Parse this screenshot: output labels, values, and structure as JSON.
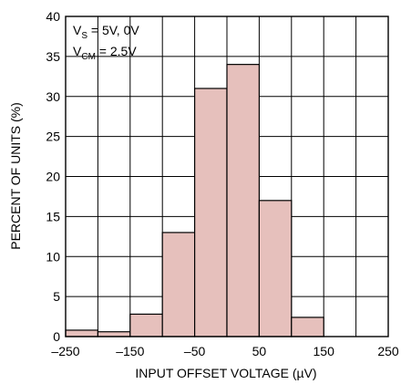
{
  "chart_data": {
    "type": "bar",
    "xlabel": "INPUT OFFSET VOLTAGE (µV)",
    "ylabel": "PERCENT OF UNITS (%)",
    "xlim": [
      -250,
      250
    ],
    "ylim": [
      0,
      40
    ],
    "x_ticks": [
      "–250",
      "–150",
      "–50",
      "50",
      "150",
      "250"
    ],
    "x_tick_values": [
      -250,
      -150,
      -50,
      50,
      150,
      250
    ],
    "y_ticks": [
      "0",
      "5",
      "10",
      "15",
      "20",
      "25",
      "30",
      "35",
      "40"
    ],
    "y_tick_values": [
      0,
      5,
      10,
      15,
      20,
      25,
      30,
      35,
      40
    ],
    "grid": true,
    "bin_width": 50,
    "bins": [
      {
        "x0": -250,
        "x1": -200,
        "value": 0.8
      },
      {
        "x0": -200,
        "x1": -150,
        "value": 0.6
      },
      {
        "x0": -150,
        "x1": -100,
        "value": 2.8
      },
      {
        "x0": -100,
        "x1": -50,
        "value": 13
      },
      {
        "x0": -50,
        "x1": 0,
        "value": 31
      },
      {
        "x0": 0,
        "x1": 50,
        "value": 34
      },
      {
        "x0": 50,
        "x1": 100,
        "value": 17
      },
      {
        "x0": 100,
        "x1": 150,
        "value": 2.4
      },
      {
        "x0": 150,
        "x1": 200,
        "value": 0
      },
      {
        "x0": 200,
        "x1": 250,
        "value": 0
      }
    ],
    "annotation": {
      "line1_main": "V",
      "line1_sub": "S",
      "line1_rest": " = 5V, 0V",
      "line2_main": "V",
      "line2_sub": "CM",
      "line2_rest": " = 2.5V"
    },
    "colors": {
      "bar_fill": "#e6c0bc",
      "stroke": "#000000"
    }
  }
}
